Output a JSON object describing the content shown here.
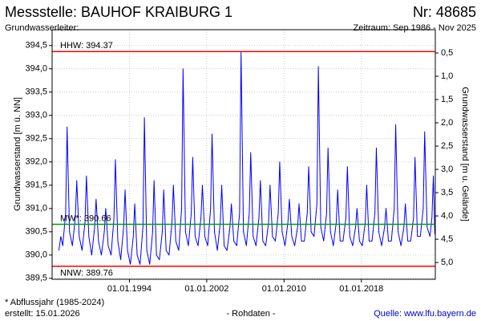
{
  "chart_data": {
    "type": "line",
    "title": "Messstelle: BAUHOF KRAIBURG 1",
    "number": "Nr: 48685",
    "subtitle": "Grundwasserleiter:",
    "period": "Zeitraum: Sep 1986 - Nov 2025",
    "y_label": "Grundwasserstand [m ü. NN]",
    "y2_label": "Grundwasserstand [m u. Gelände]",
    "footnote": "* Abflussjahr (1985-2024)",
    "created": "erstellt:  15.01.2026",
    "data_note": "- Rohdaten -",
    "source": "Quelle: www.lfu.bayern.de",
    "grid": true,
    "xlim": [
      1986.0,
      2025.65
    ],
    "xticks": [
      {
        "value": 1994,
        "label": "01.01.1994"
      },
      {
        "value": 2002,
        "label": "01.01.2002"
      },
      {
        "value": 2010,
        "label": "01.01.2010"
      },
      {
        "value": 2018,
        "label": "01.01.2018"
      }
    ],
    "ylim": [
      389.48,
      394.84
    ],
    "yticks": [
      {
        "value": 389.5,
        "label": "389,5"
      },
      {
        "value": 390.0,
        "label": "390,0"
      },
      {
        "value": 390.5,
        "label": "390,5"
      },
      {
        "value": 391.0,
        "label": "391,0"
      },
      {
        "value": 391.5,
        "label": "391,5"
      },
      {
        "value": 392.0,
        "label": "392,0"
      },
      {
        "value": 392.5,
        "label": "392,5"
      },
      {
        "value": 393.0,
        "label": "393,0"
      },
      {
        "value": 393.5,
        "label": "393,5"
      },
      {
        "value": 394.0,
        "label": "394,0"
      },
      {
        "value": 394.5,
        "label": "394,5"
      }
    ],
    "y2lim": [
      5.36,
      0.0
    ],
    "y2ticks": [
      {
        "value": 0.5,
        "label": "0,5"
      },
      {
        "value": 1.0,
        "label": "1,0"
      },
      {
        "value": 1.5,
        "label": "1,5"
      },
      {
        "value": 2.0,
        "label": "2,0"
      },
      {
        "value": 2.5,
        "label": "2,5"
      },
      {
        "value": 3.0,
        "label": "3,0"
      },
      {
        "value": 3.5,
        "label": "3,5"
      },
      {
        "value": 4.0,
        "label": "4,0"
      },
      {
        "value": 4.5,
        "label": "4,5"
      },
      {
        "value": 5.0,
        "label": "5,0"
      }
    ],
    "reference_lines": [
      {
        "label": "HHW: 394.37",
        "value": 394.37,
        "color": "#ff0000"
      },
      {
        "label": "MW*: 390.66",
        "value": 390.66,
        "color": "#00a000"
      },
      {
        "label": "NNW: 389.76",
        "value": 389.76,
        "color": "#ff0000"
      }
    ],
    "series": [
      {
        "color": "#0000ff",
        "x": [
          1986.7,
          1986.9,
          1987.1,
          1987.4,
          1987.55,
          1987.8,
          1988.1,
          1988.4,
          1988.55,
          1988.8,
          1989.1,
          1989.4,
          1989.55,
          1989.8,
          1990.1,
          1990.4,
          1990.55,
          1990.8,
          1991.1,
          1991.4,
          1991.55,
          1991.8,
          1992.1,
          1992.4,
          1992.55,
          1992.8,
          1993.1,
          1993.4,
          1993.55,
          1993.8,
          1994.1,
          1994.4,
          1994.55,
          1994.8,
          1995.1,
          1995.4,
          1995.55,
          1995.8,
          1996.1,
          1996.4,
          1996.55,
          1996.8,
          1997.1,
          1997.4,
          1997.55,
          1997.8,
          1998.1,
          1998.4,
          1998.55,
          1998.8,
          1999.1,
          1999.4,
          1999.55,
          1999.8,
          2000.1,
          2000.4,
          2000.55,
          2000.8,
          2001.1,
          2001.4,
          2001.55,
          2001.8,
          2002.1,
          2002.4,
          2002.55,
          2002.8,
          2003.1,
          2003.4,
          2003.55,
          2003.8,
          2004.1,
          2004.4,
          2004.55,
          2004.8,
          2005.1,
          2005.4,
          2005.55,
          2005.8,
          2006.1,
          2006.4,
          2006.55,
          2006.8,
          2007.1,
          2007.4,
          2007.55,
          2007.8,
          2008.1,
          2008.4,
          2008.55,
          2008.8,
          2009.1,
          2009.4,
          2009.55,
          2009.8,
          2010.1,
          2010.4,
          2010.55,
          2010.8,
          2011.1,
          2011.4,
          2011.55,
          2011.8,
          2012.1,
          2012.4,
          2012.55,
          2012.8,
          2013.1,
          2013.4,
          2013.55,
          2013.8,
          2014.1,
          2014.4,
          2014.55,
          2014.8,
          2015.1,
          2015.4,
          2015.55,
          2015.8,
          2016.1,
          2016.4,
          2016.55,
          2016.8,
          2017.1,
          2017.4,
          2017.55,
          2017.8,
          2018.1,
          2018.4,
          2018.55,
          2018.8,
          2019.1,
          2019.4,
          2019.55,
          2019.8,
          2020.1,
          2020.4,
          2020.55,
          2020.8,
          2021.1,
          2021.4,
          2021.55,
          2021.8,
          2022.1,
          2022.4,
          2022.55,
          2022.8,
          2023.1,
          2023.4,
          2023.55,
          2023.8,
          2024.1,
          2024.4,
          2024.55,
          2024.8,
          2025.1,
          2025.3,
          2025.45,
          2025.6
        ],
        "values": [
          390.1,
          390.4,
          390.2,
          390.9,
          392.75,
          390.5,
          390.2,
          390.8,
          391.6,
          390.4,
          390.1,
          390.7,
          391.7,
          390.4,
          390.0,
          390.6,
          391.2,
          390.3,
          390.0,
          390.5,
          391.0,
          390.2,
          390.0,
          390.8,
          392.05,
          390.3,
          389.9,
          390.6,
          391.4,
          390.1,
          389.8,
          390.4,
          391.1,
          390.0,
          389.8,
          390.6,
          392.95,
          390.1,
          389.8,
          390.5,
          391.6,
          390.0,
          389.9,
          390.5,
          391.4,
          390.1,
          390.0,
          390.7,
          391.5,
          390.3,
          390.1,
          391.0,
          394.0,
          390.5,
          390.2,
          390.9,
          392.1,
          390.4,
          390.2,
          390.8,
          391.5,
          390.4,
          390.2,
          391.0,
          392.6,
          390.5,
          390.1,
          390.7,
          391.5,
          390.2,
          390.1,
          390.6,
          391.1,
          390.3,
          390.2,
          390.9,
          394.37,
          390.5,
          390.2,
          390.9,
          392.2,
          390.4,
          390.2,
          390.8,
          391.6,
          390.3,
          390.2,
          390.7,
          391.5,
          390.4,
          390.3,
          390.9,
          392.0,
          390.5,
          390.2,
          390.7,
          391.2,
          390.4,
          390.2,
          390.6,
          391.1,
          390.3,
          390.3,
          390.9,
          391.9,
          390.5,
          390.4,
          391.1,
          394.05,
          390.6,
          390.3,
          390.9,
          392.3,
          390.5,
          390.2,
          390.7,
          391.4,
          390.3,
          390.3,
          390.8,
          391.9,
          390.4,
          390.2,
          390.6,
          391.0,
          390.3,
          390.2,
          390.7,
          391.5,
          390.3,
          390.3,
          390.9,
          392.3,
          390.5,
          390.2,
          390.6,
          391.0,
          390.3,
          390.3,
          391.0,
          392.8,
          390.5,
          390.2,
          390.6,
          391.1,
          390.3,
          390.3,
          390.8,
          392.1,
          390.4,
          390.4,
          391.0,
          392.65,
          390.6,
          390.4,
          390.8,
          391.7,
          390.45
        ]
      }
    ]
  }
}
